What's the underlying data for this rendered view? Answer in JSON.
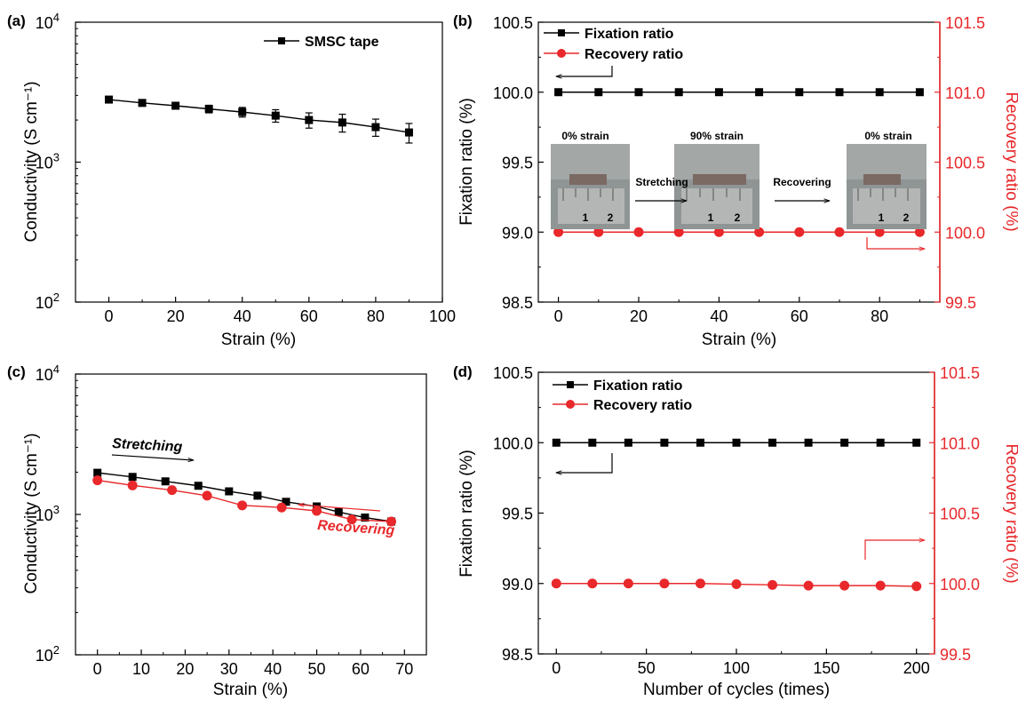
{
  "colors": {
    "black": "#000000",
    "red": "#e8282b"
  },
  "chart_data": [
    {
      "panel": "(a)",
      "type": "line",
      "xlabel": "Strain (%)",
      "ylabel": "Conductivity (S cm⁻¹)",
      "xlim": [
        -10,
        100
      ],
      "xticks": [
        0,
        20,
        40,
        60,
        80,
        100
      ],
      "xtick_labels": [
        "0",
        "20",
        "40",
        "60",
        "80",
        "100"
      ],
      "ylim": [
        100,
        10000
      ],
      "yscale": "log",
      "ytick_labels": [
        {
          "v": 100,
          "b": "10",
          "e": "2"
        },
        {
          "v": 1000,
          "b": "10",
          "e": "3"
        },
        {
          "v": 10000,
          "b": "10",
          "e": "4"
        }
      ],
      "legend_position": "top-right",
      "series": [
        {
          "name": "SMSC tape",
          "color": "#000000",
          "marker": "square",
          "x": [
            0,
            10,
            20,
            30,
            40,
            50,
            60,
            70,
            80,
            90
          ],
          "y": [
            2800,
            2650,
            2530,
            2400,
            2280,
            2150,
            2000,
            1920,
            1780,
            1630
          ],
          "yerr": [
            80,
            90,
            110,
            150,
            180,
            220,
            250,
            280,
            250,
            260
          ]
        }
      ],
      "annotations": []
    },
    {
      "panel": "(b)",
      "type": "line",
      "xlabel": "Strain (%)",
      "ylabel": "Fixation ratio (%)",
      "y2label": "Recovery ratio (%)",
      "xlim": [
        -5,
        95
      ],
      "xticks": [
        0,
        20,
        40,
        60,
        80
      ],
      "xtick_labels": [
        "0",
        "20",
        "40",
        "60",
        "80"
      ],
      "ylim": [
        98.5,
        100.5
      ],
      "yticks": [
        98.5,
        99.0,
        99.5,
        100.0,
        100.5
      ],
      "ytick_labels": [
        "98.5",
        "99.0",
        "99.5",
        "100.0",
        "100.5"
      ],
      "y2lim": [
        99.5,
        101.5
      ],
      "y2ticks": [
        99.5,
        100.0,
        100.5,
        101.0,
        101.5
      ],
      "y2tick_labels": [
        "99.5",
        "100.0",
        "100.5",
        "101.0",
        "101.5"
      ],
      "legend_position": "top-left",
      "series": [
        {
          "name": "Fixation ratio",
          "color": "#000000",
          "marker": "square",
          "axis": "left",
          "x": [
            0,
            10,
            20,
            30,
            40,
            50,
            60,
            70,
            80,
            90
          ],
          "y": [
            100,
            100,
            100,
            100,
            100,
            100,
            100,
            100,
            100,
            100
          ]
        },
        {
          "name": "Recovery ratio",
          "color": "#e8282b",
          "marker": "circle",
          "axis": "right",
          "x": [
            0,
            10,
            20,
            30,
            40,
            50,
            60,
            70,
            80,
            90
          ],
          "y": [
            100,
            100,
            100,
            100,
            100,
            100,
            100,
            100,
            100,
            100
          ]
        }
      ],
      "inset": {
        "labels": [
          "0% strain",
          "90% strain",
          "0% strain"
        ],
        "arrows": [
          "Stretching",
          "Recovering"
        ],
        "ruler_marks": [
          "1",
          "2"
        ]
      },
      "annotations": []
    },
    {
      "panel": "(c)",
      "type": "line",
      "xlabel": "Strain (%)",
      "ylabel": "Conductivity (S cm⁻¹)",
      "xlim": [
        -5,
        75
      ],
      "xticks": [
        0,
        10,
        20,
        30,
        40,
        50,
        60,
        70
      ],
      "xtick_labels": [
        "0",
        "10",
        "20",
        "30",
        "40",
        "50",
        "60",
        "70"
      ],
      "ylim": [
        100,
        10000
      ],
      "yscale": "log",
      "ytick_labels": [
        {
          "v": 100,
          "b": "10",
          "e": "2"
        },
        {
          "v": 1000,
          "b": "10",
          "e": "3"
        },
        {
          "v": 10000,
          "b": "10",
          "e": "4"
        }
      ],
      "legend_position": "none",
      "series": [
        {
          "name": "",
          "color": "#000000",
          "marker": "square",
          "x": [
            0,
            8,
            15.5,
            23,
            30,
            36.5,
            43,
            50,
            55,
            61,
            67
          ],
          "y": [
            1980,
            1850,
            1720,
            1600,
            1460,
            1360,
            1230,
            1140,
            1040,
            950,
            890
          ]
        },
        {
          "name": "",
          "color": "#e8282b",
          "marker": "circle",
          "x": [
            67,
            58,
            50,
            42,
            33,
            25,
            17,
            8,
            0
          ],
          "y": [
            890,
            920,
            1060,
            1120,
            1160,
            1360,
            1490,
            1610,
            1750
          ]
        }
      ],
      "annotations": [
        {
          "text": "Stretching",
          "color": "#000000"
        },
        {
          "text": "Recovering",
          "color": "#e8282b"
        }
      ]
    },
    {
      "panel": "(d)",
      "type": "line",
      "xlabel": "Number of cycles (times)",
      "ylabel": "Fixation ratio (%)",
      "y2label": "Recovery ratio (%)",
      "xlim": [
        -10,
        210
      ],
      "xticks": [
        0,
        50,
        100,
        150,
        200
      ],
      "xtick_labels": [
        "0",
        "50",
        "100",
        "150",
        "200"
      ],
      "ylim": [
        98.5,
        100.5
      ],
      "yticks": [
        98.5,
        99.0,
        99.5,
        100.0,
        100.5
      ],
      "ytick_labels": [
        "98.5",
        "99.0",
        "99.5",
        "100.0",
        "100.5"
      ],
      "y2lim": [
        99.5,
        101.5
      ],
      "y2ticks": [
        99.5,
        100.0,
        100.5,
        101.0,
        101.5
      ],
      "y2tick_labels": [
        "99.5",
        "100.0",
        "100.5",
        "101.0",
        "101.5"
      ],
      "legend_position": "top-left",
      "series": [
        {
          "name": "Fixation ratio",
          "color": "#000000",
          "marker": "square",
          "axis": "left",
          "x": [
            0,
            20,
            40,
            60,
            80,
            100,
            120,
            140,
            160,
            180,
            200
          ],
          "y": [
            100,
            100,
            100,
            100,
            100,
            100,
            100,
            100,
            100,
            100,
            100
          ]
        },
        {
          "name": "Recovery ratio",
          "color": "#e8282b",
          "marker": "circle",
          "axis": "right",
          "x": [
            0,
            20,
            40,
            60,
            80,
            100,
            120,
            140,
            160,
            180,
            200
          ],
          "y": [
            100.0,
            100.0,
            100.0,
            100.0,
            100.0,
            99.995,
            99.99,
            99.985,
            99.985,
            99.985,
            99.98
          ]
        }
      ],
      "annotations": []
    }
  ]
}
